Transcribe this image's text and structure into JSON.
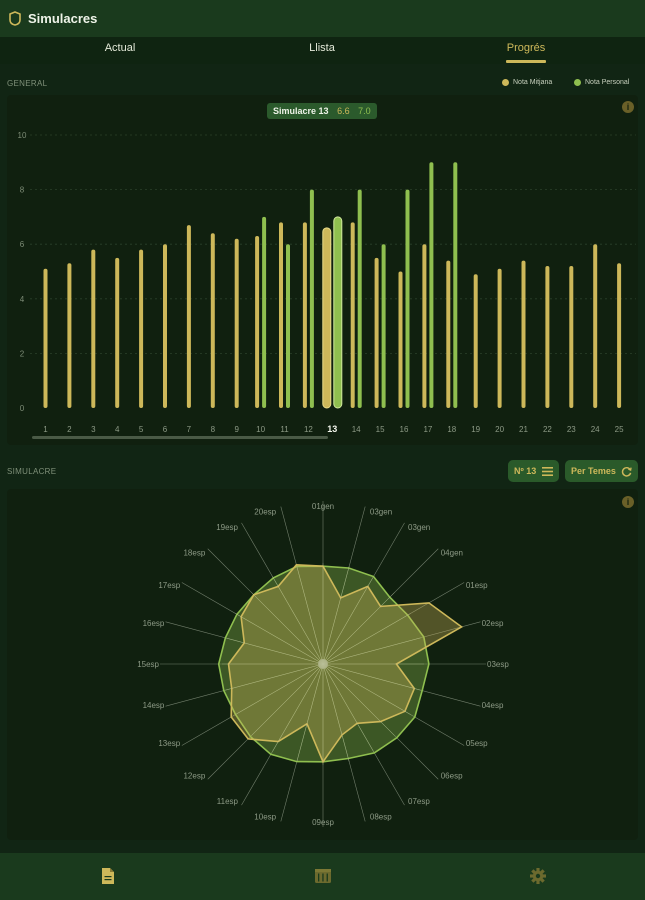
{
  "app": {
    "title": "Simulacres"
  },
  "tabs": [
    {
      "label": "Actual",
      "active": false
    },
    {
      "label": "Llista",
      "active": false
    },
    {
      "label": "Progrés",
      "active": true
    }
  ],
  "general": {
    "section_label": "GENERAL",
    "legend": [
      {
        "label": "Nota Mitjana",
        "color": "#cdb85a"
      },
      {
        "label": "Nota Personal",
        "color": "#8fbf4f"
      }
    ],
    "tooltip": {
      "title": "Simulacre 13",
      "mitjana": "6.6",
      "personal": "7.0"
    },
    "info_icon": "i"
  },
  "chart_data": [
    {
      "type": "bar",
      "categories": [
        "1",
        "2",
        "3",
        "4",
        "5",
        "6",
        "7",
        "8",
        "9",
        "10",
        "11",
        "12",
        "13",
        "14",
        "15",
        "16",
        "17",
        "18",
        "19",
        "20",
        "21",
        "22",
        "23",
        "24",
        "25"
      ],
      "selected_category": "13",
      "ylim": [
        0,
        10
      ],
      "yticks": [
        0,
        2,
        4,
        6,
        8,
        10
      ],
      "grid": true,
      "legend_placement": "top-right",
      "series": [
        {
          "name": "Nota Mitjana",
          "color": "#cdb85a",
          "values": [
            5.1,
            5.3,
            5.8,
            5.5,
            5.8,
            6.0,
            6.7,
            6.4,
            6.2,
            6.3,
            6.8,
            6.8,
            6.6,
            6.8,
            5.5,
            5.0,
            6.0,
            5.4,
            4.9,
            5.1,
            5.4,
            5.2,
            5.2,
            6.0,
            5.3
          ]
        },
        {
          "name": "Nota Personal",
          "color": "#8fbf4f",
          "values": [
            null,
            null,
            null,
            null,
            null,
            null,
            null,
            null,
            null,
            7.0,
            6.0,
            8.0,
            7.0,
            8.0,
            6.0,
            8.0,
            9.0,
            9.0,
            null,
            null,
            null,
            null,
            null,
            null,
            null
          ]
        }
      ]
    },
    {
      "type": "radar",
      "categories": [
        "01gen",
        "03gen",
        "03gen",
        "04gen",
        "01esp",
        "02esp",
        "03esp",
        "04esp",
        "05esp",
        "06esp",
        "07esp",
        "08esp",
        "09esp",
        "10esp",
        "11esp",
        "12esp",
        "13esp",
        "14esp",
        "15esp",
        "16esp",
        "17esp",
        "18esp",
        "19esp",
        "20esp"
      ],
      "rlim": [
        0,
        10
      ],
      "series": [
        {
          "name": "Nota Mitjana",
          "color": "#cdb85a",
          "values": [
            6.0,
            4.2,
            5.5,
            5.0,
            7.5,
            8.8,
            4.5,
            5.8,
            5.8,
            5.0,
            4.2,
            4.5,
            6.0,
            3.8,
            5.5,
            6.5,
            6.5,
            5.8,
            5.8,
            5.0,
            5.8,
            6.0,
            5.5,
            6.3
          ]
        },
        {
          "name": "Nota Personal",
          "color": "#8fbf4f",
          "values": [
            6.0,
            6.1,
            6.2,
            5.8,
            6.0,
            6.4,
            6.5,
            6.3,
            6.5,
            6.4,
            6.3,
            6.0,
            6.0,
            6.2,
            6.4,
            6.3,
            6.2,
            6.3,
            6.4,
            6.2,
            6.1,
            6.0,
            6.1,
            6.2
          ]
        }
      ]
    }
  ],
  "simulacre": {
    "section_label": "SIMULACRE",
    "selector_label": "Nº 13",
    "mode_label": "Per Temes",
    "info_icon": "i"
  },
  "bottom_nav": [
    {
      "icon": "document-icon",
      "active": true
    },
    {
      "icon": "calendar-grid-icon",
      "active": false
    },
    {
      "icon": "gear-icon",
      "active": false
    }
  ],
  "colors": {
    "accent": "#cdb85a",
    "personal": "#8fbf4f",
    "bar_background": "#1a3a1d"
  }
}
